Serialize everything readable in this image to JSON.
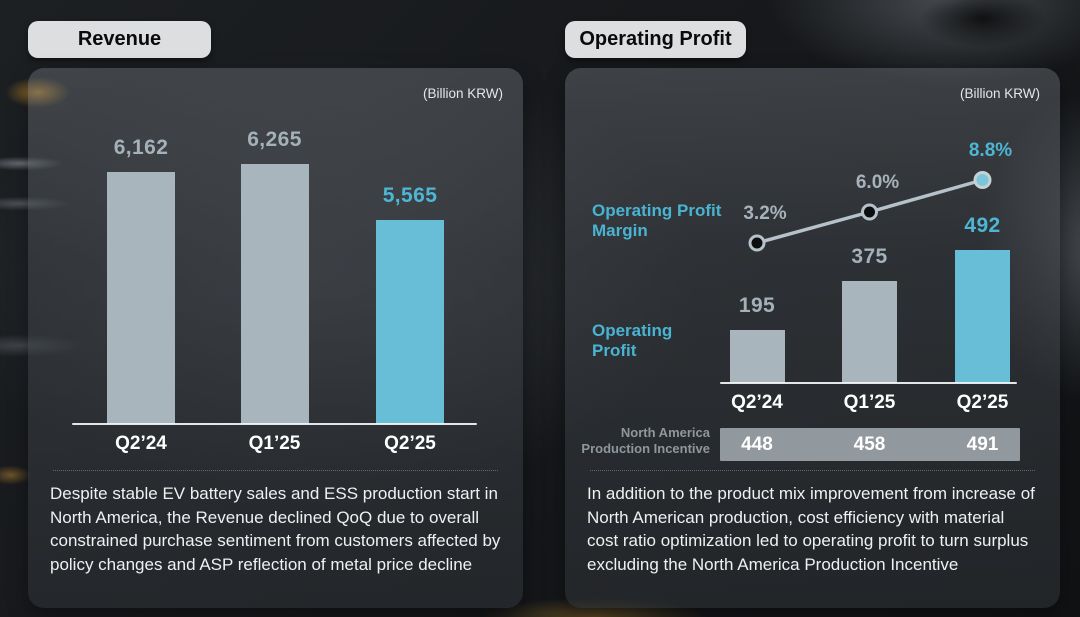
{
  "slide": {
    "left_badge": "Revenue",
    "right_badge": "Operating Profit",
    "unit_label": "(Billion KRW)"
  },
  "revenue": {
    "note": "Despite stable EV battery sales and ESS production start in North America, the Revenue declined QoQ due to overall constrained purchase sentiment from customers affected by policy changes and ASP reflection of metal price decline"
  },
  "operating_profit": {
    "margin_series_label": "Operating Profit Margin",
    "profit_series_label": "Operating Profit",
    "incentive_label": "North America Production Incentive",
    "note": "In addition to the product mix improvement from increase of North American production, cost efficiency with material cost ratio optimization led to operating profit to turn surplus excluding the North America Production Incentive"
  },
  "chart_data": [
    {
      "id": "revenue",
      "type": "bar",
      "title": "Revenue",
      "unit": "Billion KRW",
      "categories": [
        "Q2’24",
        "Q1’25",
        "Q2’25"
      ],
      "values": [
        6162,
        6265,
        5565
      ],
      "value_labels": [
        "6,162",
        "6,265",
        "5,565"
      ],
      "highlight_index": 2,
      "bar_colors": [
        "#a9b5bc",
        "#a9b5bc",
        "#67bed6"
      ],
      "grid": false,
      "legend_position": "none"
    },
    {
      "id": "operating_profit",
      "type": "bar+line",
      "title": "Operating Profit",
      "unit": "Billion KRW",
      "categories": [
        "Q2’24",
        "Q1’25",
        "Q2’25"
      ],
      "series": [
        {
          "name": "Operating Profit",
          "type": "bar",
          "values": [
            195,
            375,
            492
          ],
          "value_labels": [
            "195",
            "375",
            "492"
          ],
          "bar_colors": [
            "#a9b5bc",
            "#a9b5bc",
            "#67bed6"
          ]
        },
        {
          "name": "Operating Profit Margin",
          "type": "line",
          "unit": "%",
          "values": [
            3.2,
            6.0,
            8.8
          ],
          "value_labels": [
            "3.2%",
            "6.0%",
            "8.8%"
          ]
        },
        {
          "name": "North America Production Incentive",
          "type": "table",
          "values": [
            448,
            458,
            491
          ],
          "value_labels": [
            "448",
            "458",
            "491"
          ]
        }
      ],
      "highlight_index": 2,
      "grid": false,
      "legend_position": "left"
    }
  ],
  "colors": {
    "accent_teal_text": "#4db6d4",
    "bar_teal": "#67bed6",
    "bar_gray": "#a9b5bc",
    "value_gray": "#a5b1b9",
    "line_gray": "#b6c2c9",
    "incentive_strip": "#9aa2a8",
    "badge_bg": "#dcdedf"
  }
}
